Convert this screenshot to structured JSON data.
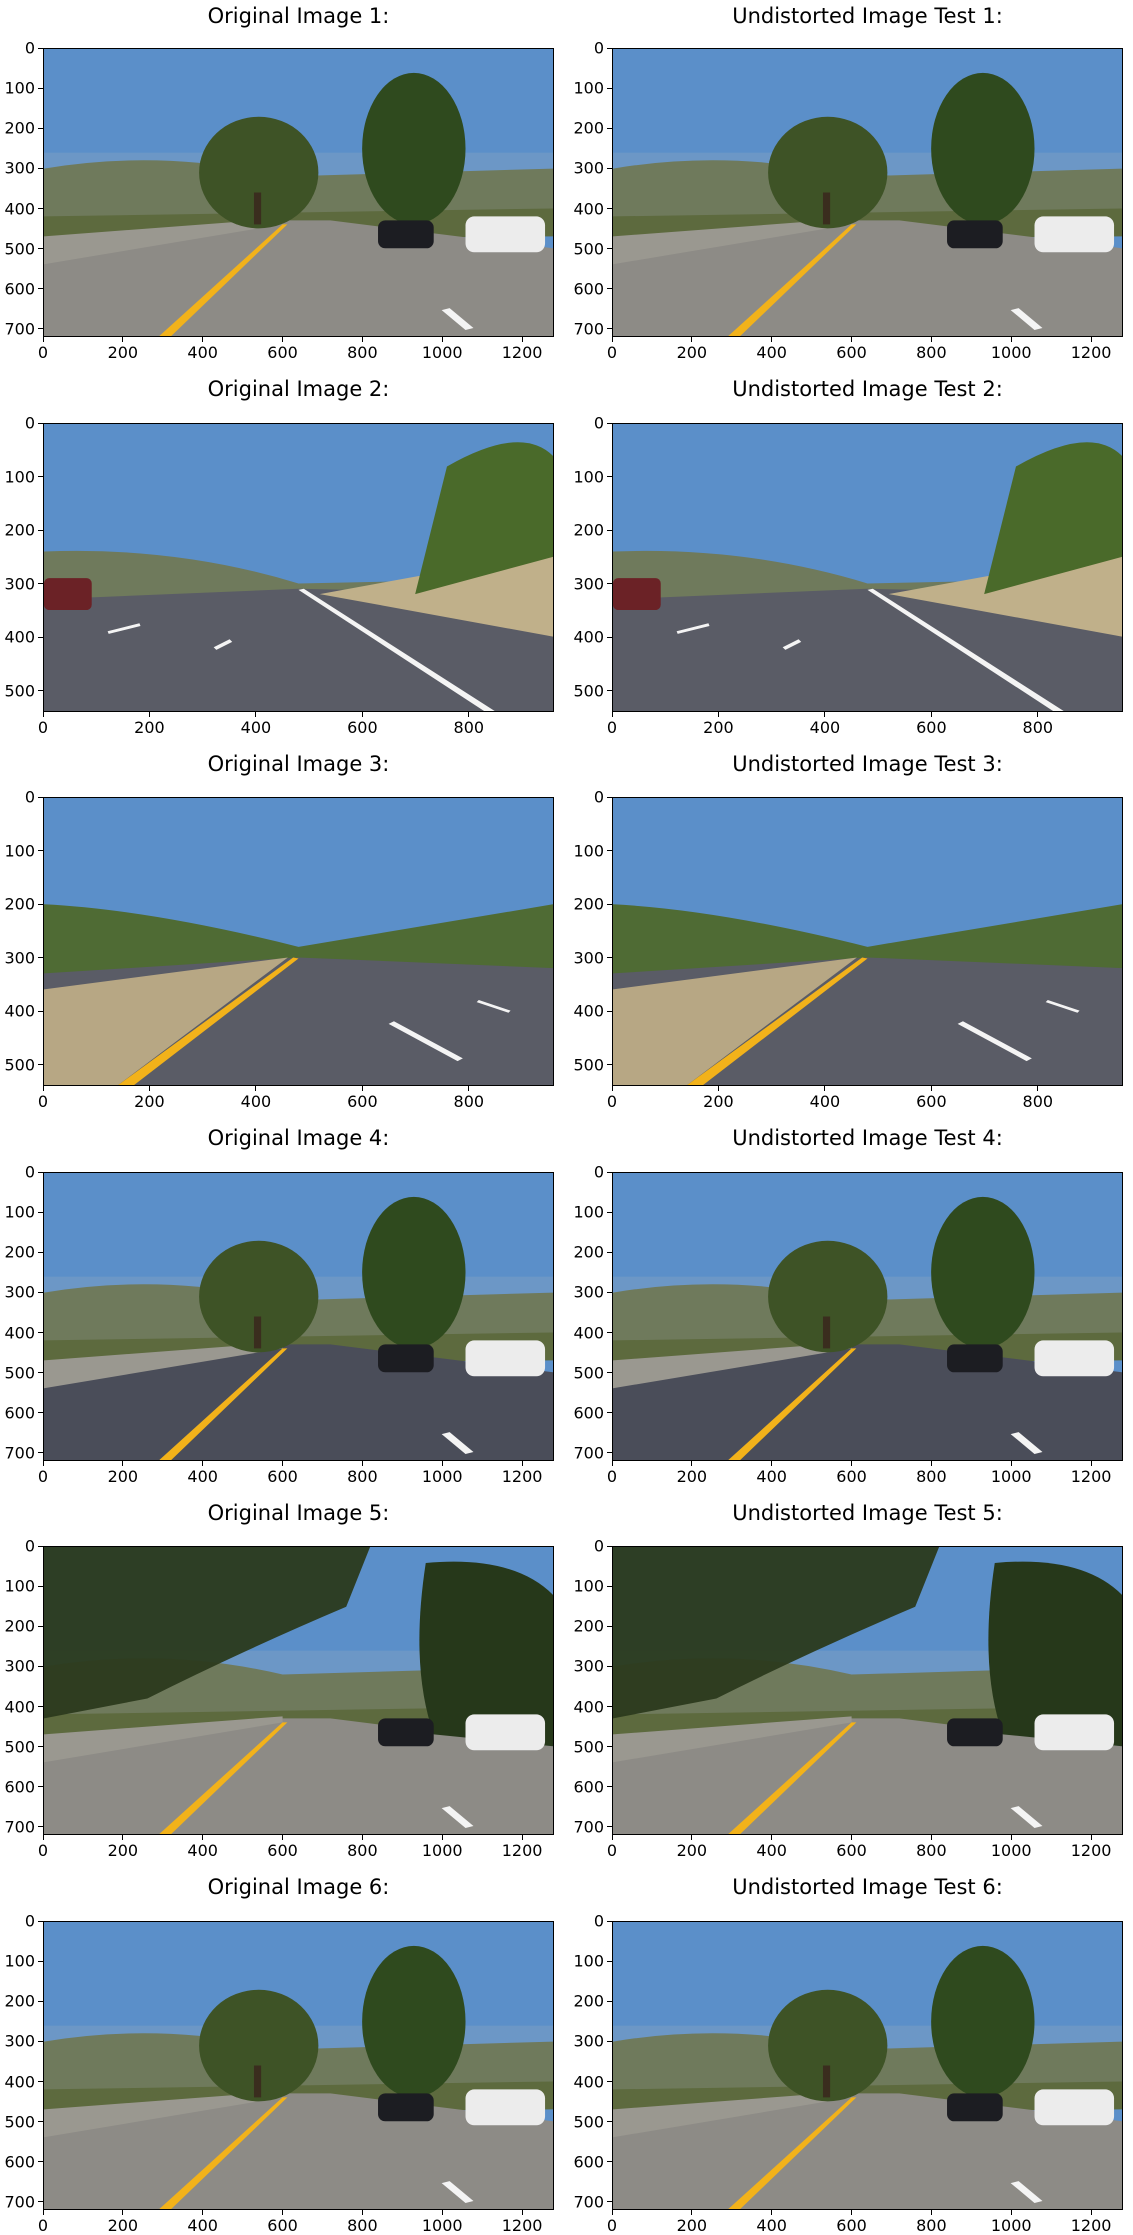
{
  "figure": {
    "panels": [
      {
        "title": "Original Image 1:",
        "scene": "road-bridge-trees",
        "x_ticks": [
          "0",
          "200",
          "400",
          "600",
          "800",
          "1000",
          "1200"
        ],
        "y_ticks": [
          "0",
          "100",
          "200",
          "300",
          "400",
          "500",
          "600",
          "700"
        ],
        "xmax": 1280,
        "ymax": 720
      },
      {
        "title": "Undistorted Image Test 1:",
        "scene": "road-bridge-trees",
        "x_ticks": [
          "0",
          "200",
          "400",
          "600",
          "800",
          "1000",
          "1200"
        ],
        "y_ticks": [
          "0",
          "100",
          "200",
          "300",
          "400",
          "500",
          "600",
          "700"
        ],
        "xmax": 1280,
        "ymax": 720
      },
      {
        "title": "Original Image 2:",
        "scene": "road-hills-fence",
        "x_ticks": [
          "0",
          "200",
          "400",
          "600",
          "800"
        ],
        "y_ticks": [
          "0",
          "100",
          "200",
          "300",
          "400",
          "500"
        ],
        "xmax": 960,
        "ymax": 540
      },
      {
        "title": "Undistorted Image Test 2:",
        "scene": "road-hills-fence",
        "x_ticks": [
          "0",
          "200",
          "400",
          "600",
          "800"
        ],
        "y_ticks": [
          "0",
          "100",
          "200",
          "300",
          "400",
          "500"
        ],
        "xmax": 960,
        "ymax": 540
      },
      {
        "title": "Original Image 3:",
        "scene": "road-yellow-left",
        "x_ticks": [
          "0",
          "200",
          "400",
          "600",
          "800"
        ],
        "y_ticks": [
          "0",
          "100",
          "200",
          "300",
          "400",
          "500"
        ],
        "xmax": 960,
        "ymax": 540
      },
      {
        "title": "Undistorted Image Test 3:",
        "scene": "road-yellow-left",
        "x_ticks": [
          "0",
          "200",
          "400",
          "600",
          "800"
        ],
        "y_ticks": [
          "0",
          "100",
          "200",
          "300",
          "400",
          "500"
        ],
        "xmax": 960,
        "ymax": 540
      },
      {
        "title": "Original Image 4:",
        "scene": "road-shadows",
        "x_ticks": [
          "0",
          "200",
          "400",
          "600",
          "800",
          "1000",
          "1200"
        ],
        "y_ticks": [
          "0",
          "100",
          "200",
          "300",
          "400",
          "500",
          "600",
          "700"
        ],
        "xmax": 1280,
        "ymax": 720
      },
      {
        "title": "Undistorted Image Test 4:",
        "scene": "road-shadows",
        "x_ticks": [
          "0",
          "200",
          "400",
          "600",
          "800",
          "1000",
          "1200"
        ],
        "y_ticks": [
          "0",
          "100",
          "200",
          "300",
          "400",
          "500",
          "600",
          "700"
        ],
        "xmax": 1280,
        "ymax": 720
      },
      {
        "title": "Original Image 5:",
        "scene": "road-tree-canopy",
        "x_ticks": [
          "0",
          "200",
          "400",
          "600",
          "800",
          "1000",
          "1200"
        ],
        "y_ticks": [
          "0",
          "100",
          "200",
          "300",
          "400",
          "500",
          "600",
          "700"
        ],
        "xmax": 1280,
        "ymax": 720
      },
      {
        "title": "Undistorted Image Test 5:",
        "scene": "road-tree-canopy",
        "x_ticks": [
          "0",
          "200",
          "400",
          "600",
          "800",
          "1000",
          "1200"
        ],
        "y_ticks": [
          "0",
          "100",
          "200",
          "300",
          "400",
          "500",
          "600",
          "700"
        ],
        "xmax": 1280,
        "ymax": 720
      },
      {
        "title": "Original Image 6:",
        "scene": "road-barrier-trees",
        "x_ticks": [
          "0",
          "200",
          "400",
          "600",
          "800",
          "1000",
          "1200"
        ],
        "y_ticks": [
          "0",
          "100",
          "200",
          "300",
          "400",
          "500",
          "600",
          "700"
        ],
        "xmax": 1280,
        "ymax": 720
      },
      {
        "title": "Undistorted Image Test 6:",
        "scene": "road-barrier-trees",
        "x_ticks": [
          "0",
          "200",
          "400",
          "600",
          "800",
          "1000",
          "1200"
        ],
        "y_ticks": [
          "0",
          "100",
          "200",
          "300",
          "400",
          "500",
          "600",
          "700"
        ],
        "xmax": 1280,
        "ymax": 720
      }
    ]
  },
  "colors": {
    "sky": "#5b8fc9",
    "road": "#5a5c66",
    "yellow_line": "#f2b21a",
    "white_line": "#f4f4f4",
    "tree": "#3e5326",
    "hill": "#6f7a5c"
  }
}
